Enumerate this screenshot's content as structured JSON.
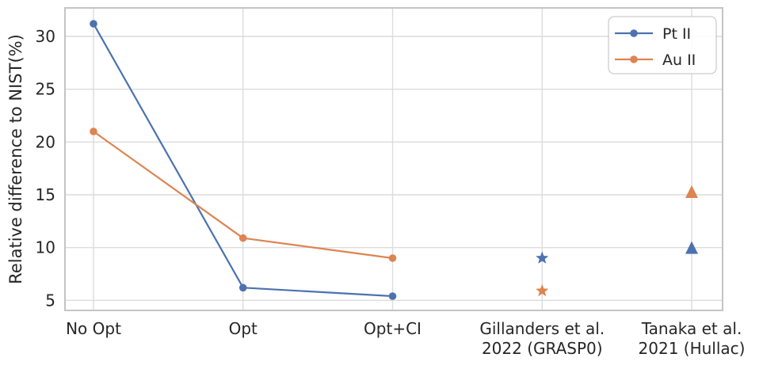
{
  "chart_data": {
    "type": "line",
    "title": "",
    "xlabel": "",
    "ylabel": "Relative difference to NIST(%)",
    "categories": [
      "No Opt",
      "Opt",
      "Opt+CI",
      "Gillanders et al. 2022 (GRASP0)",
      "Tanaka et al. 2021 (Hullac)"
    ],
    "x_tick_labels": [
      [
        "No Opt"
      ],
      [
        "Opt"
      ],
      [
        "Opt+CI"
      ],
      [
        "Gillanders et al.",
        "2022 (GRASP0)"
      ],
      [
        "Tanaka et al.",
        "2021 (Hullac)"
      ]
    ],
    "y_ticks": [
      5,
      10,
      15,
      20,
      25,
      30
    ],
    "ylim": [
      4.05,
      32.7
    ],
    "grid": true,
    "legend": {
      "position": "upper right",
      "entries": [
        {
          "label": "Pt II",
          "color": "#4C72B0"
        },
        {
          "label": "Au II",
          "color": "#DD8452"
        }
      ]
    },
    "series": [
      {
        "name": "Pt II",
        "color": "#4C72B0",
        "line": {
          "categories": [
            "No Opt",
            "Opt",
            "Opt+CI"
          ],
          "values": [
            31.2,
            6.2,
            5.4
          ],
          "marker": "circle"
        },
        "scatter": [
          {
            "category": "Gillanders et al. 2022 (GRASP0)",
            "category_index": 3,
            "value": 9.0,
            "marker": "star"
          },
          {
            "category": "Tanaka et al. 2021 (Hullac)",
            "category_index": 4,
            "value": 10.0,
            "marker": "triangle"
          }
        ]
      },
      {
        "name": "Au II",
        "color": "#DD8452",
        "line": {
          "categories": [
            "No Opt",
            "Opt",
            "Opt+CI"
          ],
          "values": [
            21.0,
            10.9,
            9.0
          ],
          "marker": "circle"
        },
        "scatter": [
          {
            "category": "Gillanders et al. 2022 (GRASP0)",
            "category_index": 3,
            "value": 5.9,
            "marker": "star"
          },
          {
            "category": "Tanaka et al. 2021 (Hullac)",
            "category_index": 4,
            "value": 15.3,
            "marker": "triangle"
          }
        ]
      }
    ],
    "style": {
      "grid_color": "#dcdcdc",
      "spine_color": "#c4c4c4",
      "text_color": "#262626",
      "background": "#ffffff"
    }
  }
}
